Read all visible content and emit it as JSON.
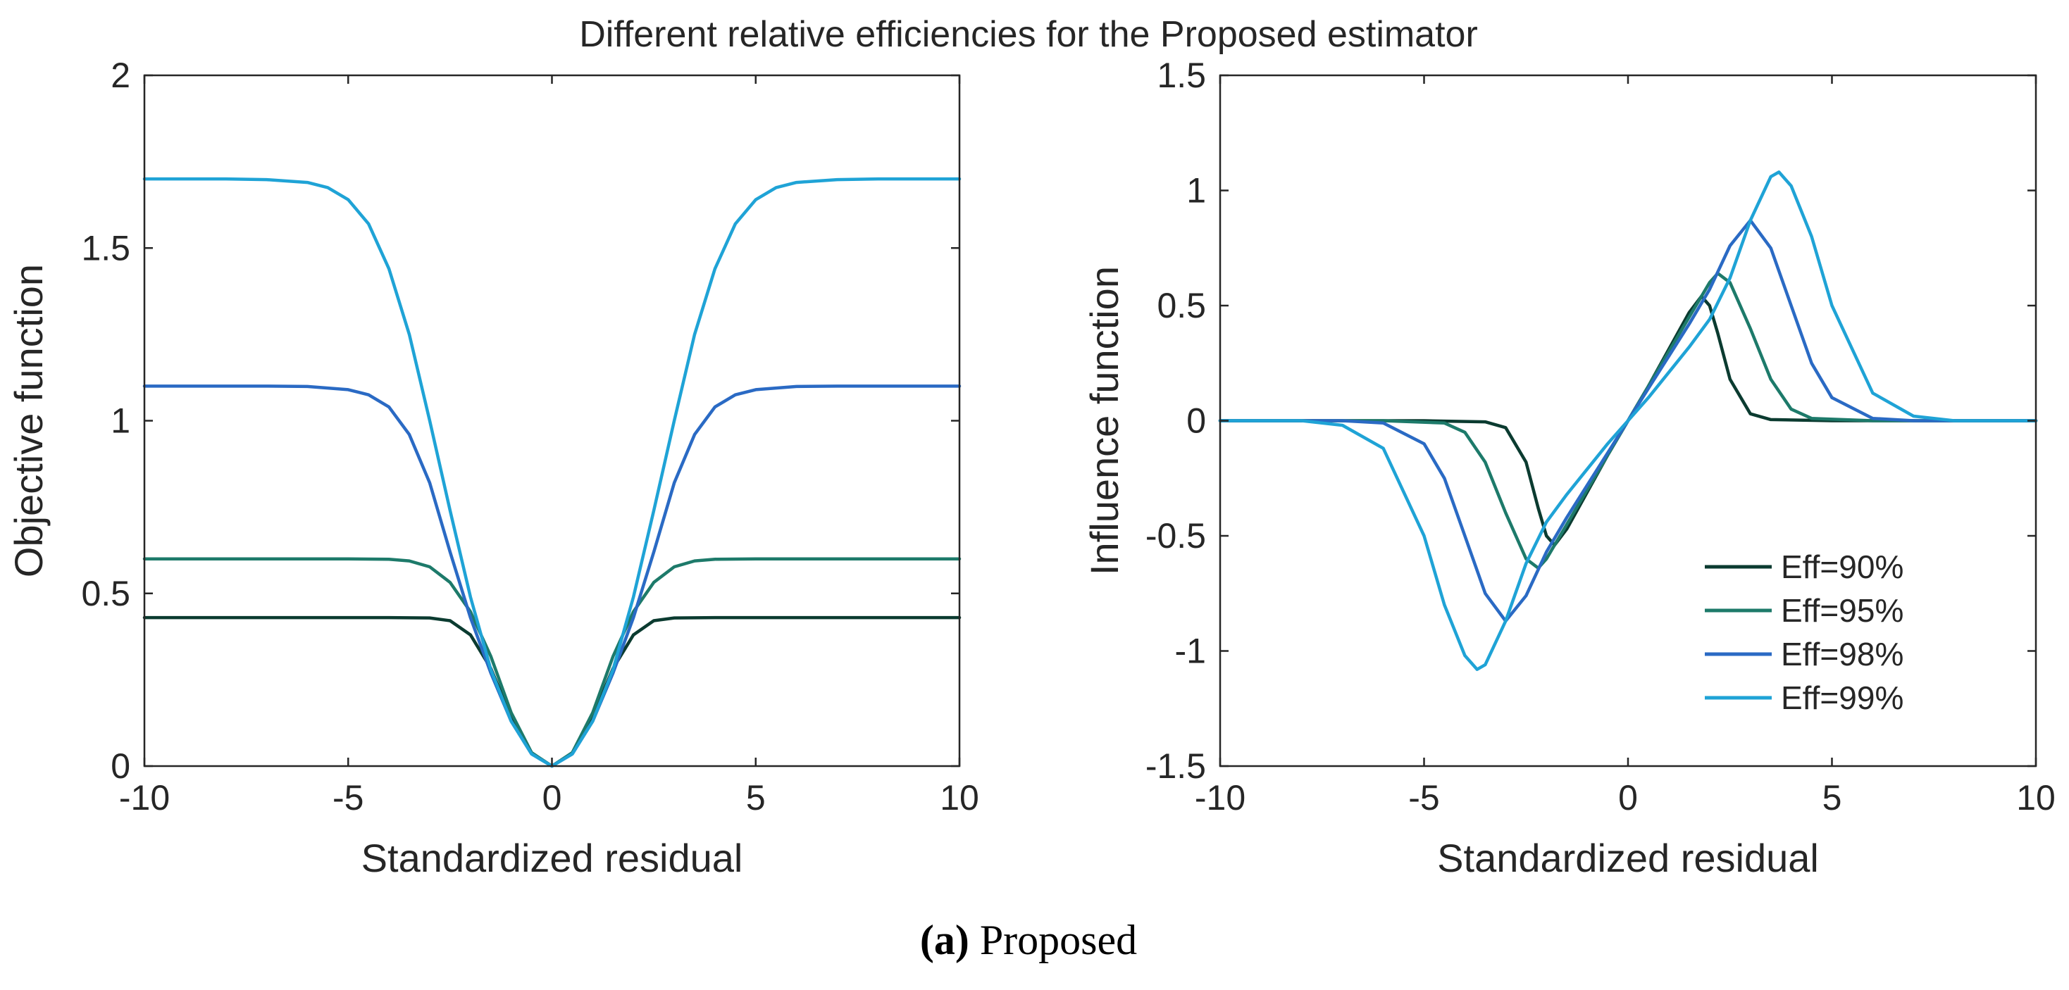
{
  "figure": {
    "title": "Different relative efficiencies for the Proposed estimator",
    "caption_label": "(a)",
    "caption_text": " Proposed"
  },
  "chart_data": [
    {
      "type": "line",
      "title": "",
      "xlabel": "Standardized residual",
      "ylabel": "Objective function",
      "xlim": [
        -10,
        10
      ],
      "ylim": [
        0,
        2
      ],
      "xticks": [
        -10,
        -5,
        0,
        5,
        10
      ],
      "yticks": [
        0,
        0.5,
        1,
        1.5,
        2
      ],
      "xtick_labels": [
        "-10",
        "-5",
        "0",
        "5",
        "10"
      ],
      "ytick_labels": [
        "0",
        "0.5",
        "1",
        "1.5",
        "2"
      ],
      "grid": false,
      "legend": "none",
      "series": [
        {
          "name": "Eff=90%",
          "color": "#0b3b30",
          "x": [
            -10,
            -8,
            -6,
            -4,
            -3,
            -2.5,
            -2,
            -1.5,
            -1,
            -0.5,
            0,
            0.5,
            1,
            1.5,
            2,
            2.5,
            3,
            4,
            6,
            8,
            10
          ],
          "y": [
            0.43,
            0.43,
            0.43,
            0.43,
            0.429,
            0.421,
            0.38,
            0.283,
            0.142,
            0.037,
            0,
            0.037,
            0.142,
            0.283,
            0.38,
            0.421,
            0.429,
            0.43,
            0.43,
            0.43,
            0.43
          ]
        },
        {
          "name": "Eff=95%",
          "color": "#1d7a6a",
          "x": [
            -10,
            -8,
            -6,
            -5,
            -4,
            -3.5,
            -3,
            -2.5,
            -2,
            -1.5,
            -1,
            -0.5,
            0,
            0.5,
            1,
            1.5,
            2,
            2.5,
            3,
            3.5,
            4,
            5,
            6,
            8,
            10
          ],
          "y": [
            0.6,
            0.6,
            0.6,
            0.6,
            0.599,
            0.594,
            0.577,
            0.532,
            0.447,
            0.318,
            0.155,
            0.039,
            0,
            0.039,
            0.155,
            0.318,
            0.447,
            0.532,
            0.577,
            0.594,
            0.599,
            0.6,
            0.6,
            0.6,
            0.6
          ]
        },
        {
          "name": "Eff=98%",
          "color": "#2a6ac4",
          "x": [
            -10,
            -8,
            -7,
            -6,
            -5,
            -4.5,
            -4,
            -3.5,
            -3,
            -2.5,
            -2,
            -1.5,
            -1,
            -0.5,
            0,
            0.5,
            1,
            1.5,
            2,
            2.5,
            3,
            3.5,
            4,
            4.5,
            5,
            6,
            7,
            8,
            10
          ],
          "y": [
            1.1,
            1.1,
            1.1,
            1.099,
            1.09,
            1.075,
            1.04,
            0.96,
            0.82,
            0.62,
            0.43,
            0.27,
            0.13,
            0.035,
            0,
            0.035,
            0.13,
            0.27,
            0.43,
            0.62,
            0.82,
            0.96,
            1.04,
            1.075,
            1.09,
            1.099,
            1.1,
            1.1,
            1.1
          ]
        },
        {
          "name": "Eff=99%",
          "color": "#1fa3d6",
          "x": [
            -10,
            -8,
            -7,
            -6,
            -5.5,
            -5,
            -4.5,
            -4,
            -3.5,
            -3,
            -2.5,
            -2,
            -1.5,
            -1,
            -0.5,
            0,
            0.5,
            1,
            1.5,
            2,
            2.5,
            3,
            3.5,
            4,
            4.5,
            5,
            5.5,
            6,
            7,
            8,
            10
          ],
          "y": [
            1.7,
            1.7,
            1.698,
            1.69,
            1.675,
            1.64,
            1.57,
            1.44,
            1.25,
            1.0,
            0.74,
            0.49,
            0.28,
            0.13,
            0.035,
            0,
            0.035,
            0.13,
            0.28,
            0.49,
            0.74,
            1.0,
            1.25,
            1.44,
            1.57,
            1.64,
            1.675,
            1.69,
            1.698,
            1.7,
            1.7
          ]
        }
      ]
    },
    {
      "type": "line",
      "title": "",
      "xlabel": "Standardized residual",
      "ylabel": "Influence function",
      "xlim": [
        -10,
        10
      ],
      "ylim": [
        -1.5,
        1.5
      ],
      "xticks": [
        -10,
        -5,
        0,
        5,
        10
      ],
      "yticks": [
        -1.5,
        -1,
        -0.5,
        0,
        0.5,
        1,
        1.5
      ],
      "xtick_labels": [
        "-10",
        "-5",
        "0",
        "5",
        "10"
      ],
      "ytick_labels": [
        "-1.5",
        "-1",
        "-0.5",
        "0",
        "0.5",
        "1",
        "1.5"
      ],
      "grid": false,
      "legend": "bottom-right",
      "series": [
        {
          "name": "Eff=90%",
          "color": "#0b3b30",
          "x": [
            -10,
            -5,
            -3.5,
            -3,
            -2.5,
            -2.2,
            -2,
            -1.8,
            -1.5,
            -1,
            -0.5,
            0,
            0.5,
            1,
            1.5,
            1.8,
            2,
            2.2,
            2.5,
            3,
            3.5,
            5,
            10
          ],
          "y": [
            0,
            0,
            -0.005,
            -0.03,
            -0.18,
            -0.38,
            -0.5,
            -0.54,
            -0.47,
            -0.31,
            -0.15,
            0,
            0.15,
            0.31,
            0.47,
            0.54,
            0.5,
            0.38,
            0.18,
            0.03,
            0.005,
            0,
            0
          ]
        },
        {
          "name": "Eff=95%",
          "color": "#1d7a6a",
          "x": [
            -10,
            -6,
            -4.5,
            -4,
            -3.5,
            -3,
            -2.5,
            -2.2,
            -2,
            -1.5,
            -1,
            -0.5,
            0,
            0.5,
            1,
            1.5,
            2,
            2.2,
            2.5,
            3,
            3.5,
            4,
            4.5,
            6,
            10
          ],
          "y": [
            0,
            0,
            -0.01,
            -0.05,
            -0.18,
            -0.4,
            -0.6,
            -0.64,
            -0.6,
            -0.45,
            -0.3,
            -0.15,
            0,
            0.15,
            0.3,
            0.45,
            0.6,
            0.64,
            0.6,
            0.4,
            0.18,
            0.05,
            0.01,
            0,
            0
          ]
        },
        {
          "name": "Eff=98%",
          "color": "#2a6ac4",
          "x": [
            -10,
            -7,
            -6,
            -5,
            -4.5,
            -4,
            -3.5,
            -3,
            -2.5,
            -2,
            -1.5,
            -1,
            -0.5,
            0,
            0.5,
            1,
            1.5,
            2,
            2.5,
            3,
            3.5,
            4,
            4.5,
            5,
            6,
            7,
            10
          ],
          "y": [
            0,
            0,
            -0.01,
            -0.1,
            -0.25,
            -0.5,
            -0.75,
            -0.87,
            -0.76,
            -0.57,
            -0.42,
            -0.28,
            -0.14,
            0,
            0.14,
            0.28,
            0.42,
            0.57,
            0.76,
            0.87,
            0.75,
            0.5,
            0.25,
            0.1,
            0.01,
            0,
            0
          ]
        },
        {
          "name": "Eff=99%",
          "color": "#1fa3d6",
          "x": [
            -10,
            -8,
            -7,
            -6,
            -5,
            -4.5,
            -4,
            -3.7,
            -3.5,
            -3,
            -2.5,
            -2,
            -1.5,
            -1,
            -0.5,
            0,
            0.5,
            1,
            1.5,
            2,
            2.5,
            3,
            3.5,
            3.7,
            4,
            4.5,
            5,
            6,
            7,
            8,
            10
          ],
          "y": [
            0,
            0,
            -0.02,
            -0.12,
            -0.5,
            -0.8,
            -1.02,
            -1.08,
            -1.06,
            -0.87,
            -0.62,
            -0.44,
            -0.32,
            -0.21,
            -0.1,
            0,
            0.1,
            0.21,
            0.32,
            0.44,
            0.62,
            0.87,
            1.06,
            1.08,
            1.02,
            0.8,
            0.5,
            0.12,
            0.02,
            0,
            0
          ]
        }
      ]
    }
  ]
}
